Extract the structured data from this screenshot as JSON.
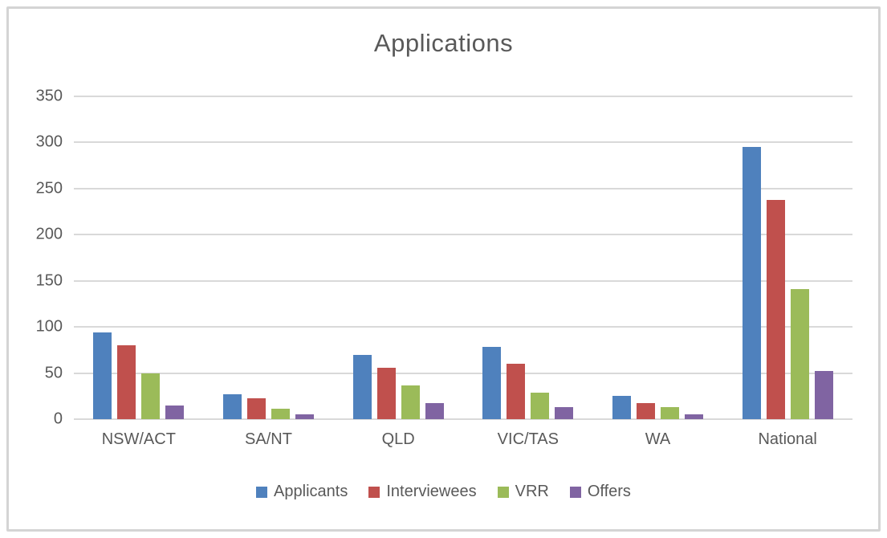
{
  "figure": {
    "background": "#ffffff",
    "border_color": "#d4d4d4"
  },
  "chart_data": {
    "type": "bar",
    "title": "Applications",
    "xlabel": "",
    "ylabel": "",
    "categories": [
      "NSW/ACT",
      "SA/NT",
      "QLD",
      "VIC/TAS",
      "WA",
      "National"
    ],
    "series": [
      {
        "name": "Applicants",
        "color": "#4f81bd",
        "values": [
          94,
          27,
          70,
          78,
          25,
          295
        ]
      },
      {
        "name": "Interviewees",
        "color": "#c0504d",
        "values": [
          80,
          23,
          56,
          60,
          17,
          238
        ]
      },
      {
        "name": "VRR",
        "color": "#9bbb59",
        "values": [
          50,
          11,
          37,
          29,
          13,
          141
        ]
      },
      {
        "name": "Offers",
        "color": "#8064a2",
        "values": [
          15,
          5,
          17,
          13,
          5,
          52
        ]
      }
    ],
    "y_axis": {
      "min": 0,
      "max": 350,
      "tick_step": 50,
      "tick_labels": [
        "0",
        "50",
        "100",
        "150",
        "200",
        "250",
        "300",
        "350"
      ]
    },
    "grid": true,
    "gridline_color": "#d9d9d9",
    "text_color": "#595959",
    "legend_position": "bottom"
  }
}
